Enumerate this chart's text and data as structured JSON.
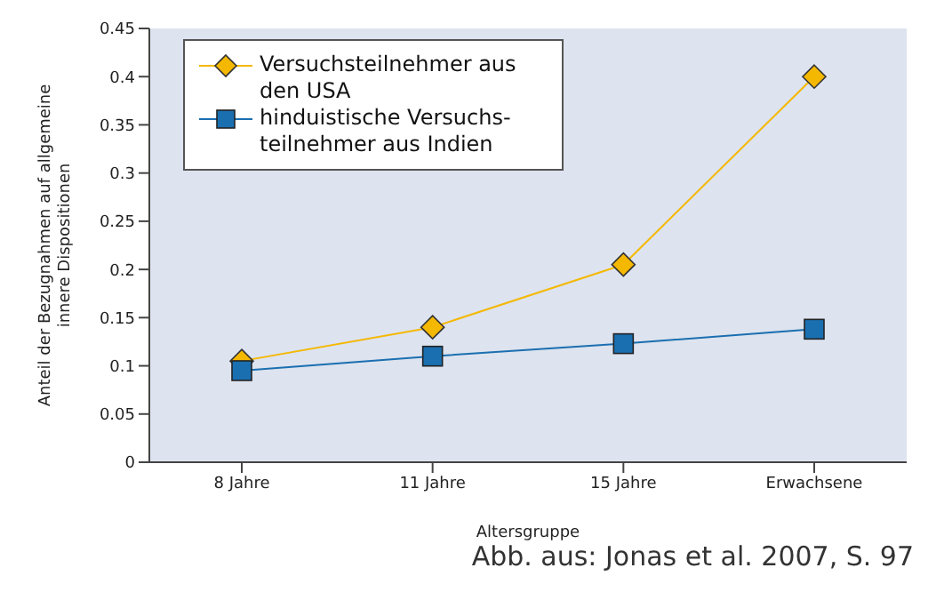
{
  "chart_data": {
    "type": "line",
    "xlabel": "Altersgruppe",
    "ylabel": "Anteil der Bezugnahmen auf allgemeine\ninnere Dispositionen",
    "categories": [
      "8 Jahre",
      "11 Jahre",
      "15 Jahre",
      "Erwachsene"
    ],
    "series": [
      {
        "name": "Versuchsteilnehmer aus den USA",
        "color": "#f5b800",
        "marker": "diamond",
        "values": [
          0.105,
          0.14,
          0.205,
          0.4
        ]
      },
      {
        "name": "hinduistische Versuchs-teilnehmer aus Indien",
        "color": "#1a6fb0",
        "marker": "square",
        "values": [
          0.095,
          0.11,
          0.123,
          0.138
        ]
      }
    ],
    "ylim": [
      0,
      0.45
    ],
    "yticks": [
      0,
      0.05,
      0.1,
      0.15,
      0.2,
      0.25,
      0.3,
      0.35,
      0.4,
      0.45
    ],
    "grid": false,
    "legend": "top left",
    "annotations": [
      "Abb. aus: Jonas et al. 2007, S. 97"
    ]
  }
}
